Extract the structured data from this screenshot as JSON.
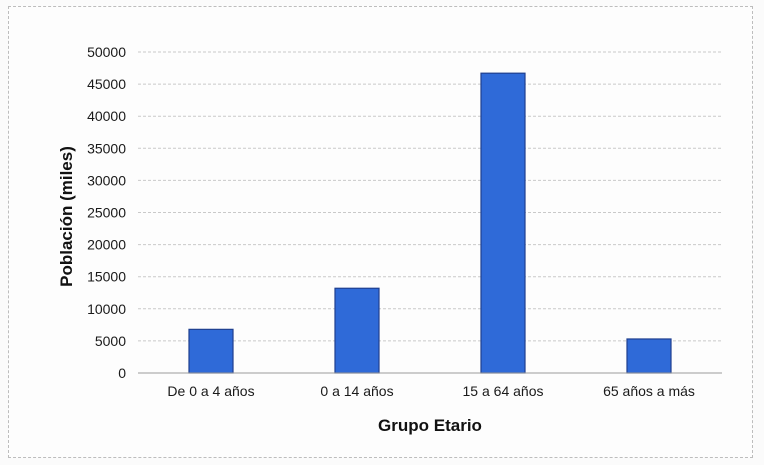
{
  "chart_data": {
    "type": "bar",
    "title": "",
    "xlabel": "Grupo Etario",
    "ylabel": "Población (miles)",
    "categories": [
      "De 0 a 4 años",
      "0 a 14 años",
      "15 a 64 años",
      "65 años a más"
    ],
    "values": [
      6800,
      13200,
      46700,
      5300
    ],
    "ylim": [
      0,
      50000
    ],
    "yticks": [
      "0",
      "5000",
      "10000",
      "15000",
      "20000",
      "25000",
      "30000",
      "35000",
      "40000",
      "45000",
      "50000"
    ],
    "grid": true,
    "legend": "none",
    "bar_color": "#2f6ad8",
    "bar_edge_color": "#1f3f8f",
    "grid_color": "#c9c9c9"
  }
}
